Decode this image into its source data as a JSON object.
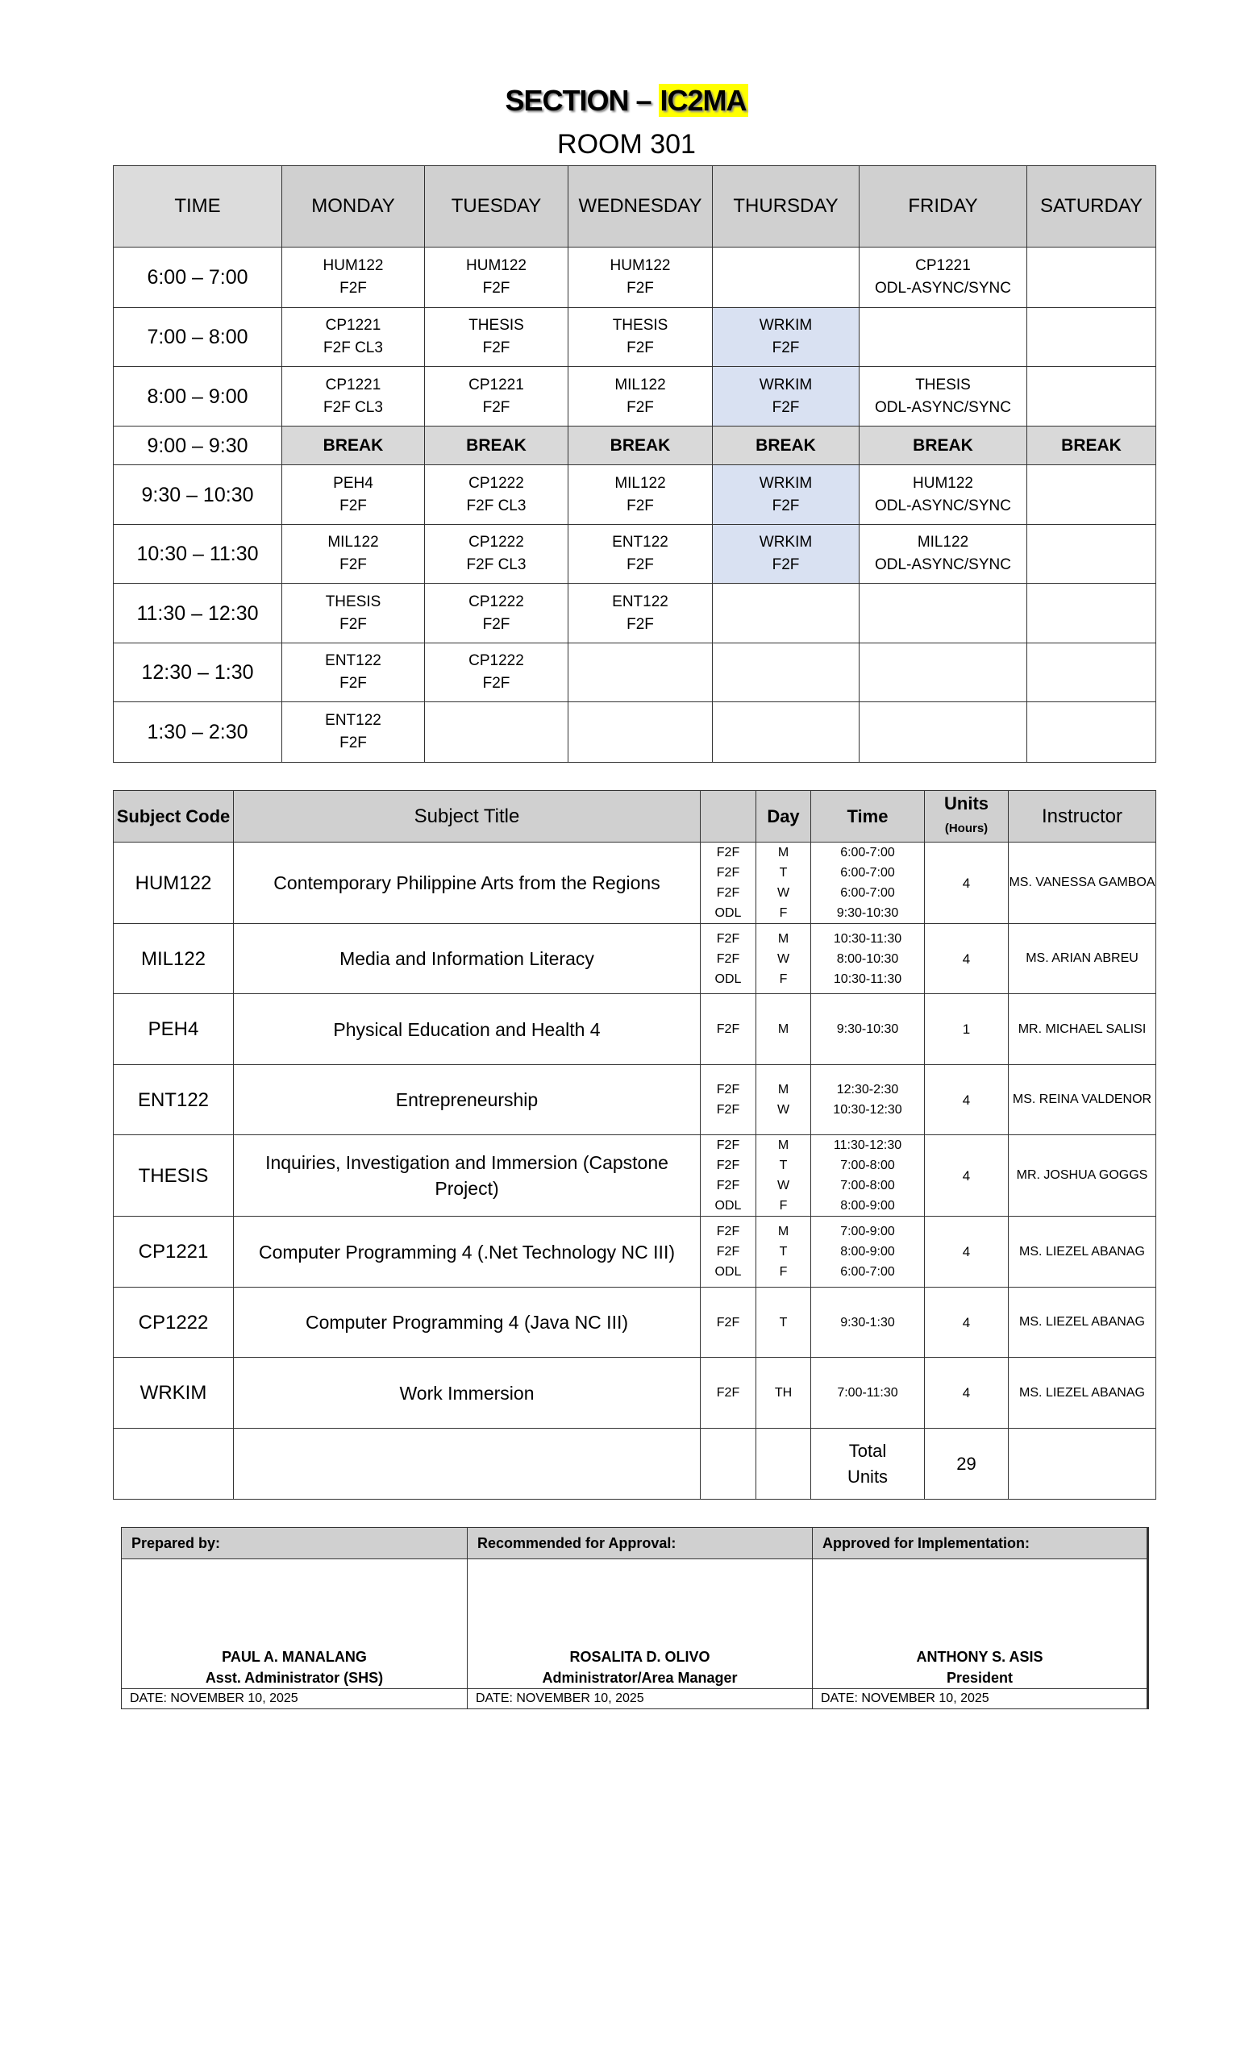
{
  "header": {
    "section_prefix": "SECTION – ",
    "section_code": "IC2MA",
    "room": "ROOM 301"
  },
  "colors": {
    "highlight": "#ffff00",
    "wrkim_cell": "#d9e1f2",
    "header_bg": "#d0d0d0",
    "break_bg": "#d9d9d9"
  },
  "schedule": {
    "columns": [
      "TIME",
      "MONDAY",
      "TUESDAY",
      "WEDNESDAY",
      "THURSDAY",
      "FRIDAY",
      "SATURDAY"
    ],
    "break_label": "BREAK",
    "rows": [
      {
        "time": "6:00 – 7:00",
        "cells": [
          [
            "HUM122",
            "F2F"
          ],
          [
            "HUM122",
            "F2F"
          ],
          [
            "HUM122",
            "F2F"
          ],
          null,
          [
            "CP1221",
            "ODL-ASYNC/SYNC"
          ],
          null
        ]
      },
      {
        "time": "7:00 – 8:00",
        "cells": [
          [
            "CP1221",
            "F2F CL3"
          ],
          [
            "THESIS",
            "F2F"
          ],
          [
            "THESIS",
            "F2F"
          ],
          [
            "WRKIM",
            "F2F"
          ],
          null,
          null
        ]
      },
      {
        "time": "8:00 – 9:00",
        "cells": [
          [
            "CP1221",
            "F2F CL3"
          ],
          [
            "CP1221",
            "F2F"
          ],
          [
            "MIL122",
            "F2F"
          ],
          [
            "WRKIM",
            "F2F"
          ],
          [
            "THESIS",
            "ODL-ASYNC/SYNC"
          ],
          null
        ]
      },
      {
        "time": "9:00 – 9:30",
        "is_break": true
      },
      {
        "time": "9:30 – 10:30",
        "cells": [
          [
            "PEH4",
            "F2F"
          ],
          [
            "CP1222",
            "F2F CL3"
          ],
          [
            "MIL122",
            "F2F"
          ],
          [
            "WRKIM",
            "F2F"
          ],
          [
            "HUM122",
            "ODL-ASYNC/SYNC"
          ],
          null
        ]
      },
      {
        "time": "10:30 – 11:30",
        "cells": [
          [
            "MIL122",
            "F2F"
          ],
          [
            "CP1222",
            "F2F CL3"
          ],
          [
            "ENT122",
            "F2F"
          ],
          [
            "WRKIM",
            "F2F"
          ],
          [
            "MIL122",
            "ODL-ASYNC/SYNC"
          ],
          null
        ]
      },
      {
        "time": "11:30 – 12:30",
        "cells": [
          [
            "THESIS",
            "F2F"
          ],
          [
            "CP1222",
            "F2F"
          ],
          [
            "ENT122",
            "F2F"
          ],
          null,
          null,
          null
        ]
      },
      {
        "time": "12:30 – 1:30",
        "cells": [
          [
            "ENT122",
            "F2F"
          ],
          [
            "CP1222",
            "F2F"
          ],
          null,
          null,
          null,
          null
        ]
      },
      {
        "time": "1:30 – 2:30",
        "cells": [
          [
            "ENT122",
            "F2F"
          ],
          null,
          null,
          null,
          null,
          null
        ]
      }
    ]
  },
  "subjects": {
    "headers": {
      "code": "Subject Code",
      "title": "Subject Title",
      "mode": "",
      "day": "Day",
      "time": "Time",
      "units": "Units",
      "units_sub": "(Hours)",
      "instructor": "Instructor"
    },
    "rows": [
      {
        "code": "HUM122",
        "title": "Contemporary Philippine Arts from the Regions",
        "mode": [
          "F2F",
          "F2F",
          "F2F",
          "ODL"
        ],
        "day": [
          "M",
          "T",
          "W",
          "F"
        ],
        "time": [
          "6:00-7:00",
          "6:00-7:00",
          "6:00-7:00",
          "9:30-10:30"
        ],
        "units": "4",
        "instructor": "MS. VANESSA GAMBOA"
      },
      {
        "code": "MIL122",
        "title": "Media and Information Literacy",
        "mode": [
          "F2F",
          "F2F",
          "ODL"
        ],
        "day": [
          "M",
          "W",
          "F"
        ],
        "time": [
          "10:30-11:30",
          "8:00-10:30",
          "10:30-11:30"
        ],
        "units": "4",
        "instructor": "MS. ARIAN ABREU"
      },
      {
        "code": "PEH4",
        "title": "Physical Education and Health 4",
        "mode": [
          "F2F"
        ],
        "day": [
          "M"
        ],
        "time": [
          "9:30-10:30"
        ],
        "units": "1",
        "instructor": "MR. MICHAEL SALISI"
      },
      {
        "code": "ENT122",
        "title": "Entrepreneurship",
        "mode": [
          "F2F",
          "F2F"
        ],
        "day": [
          "M",
          "W"
        ],
        "time": [
          "12:30-2:30",
          "10:30-12:30"
        ],
        "units": "4",
        "instructor": "MS. REINA VALDENOR"
      },
      {
        "code": "THESIS",
        "title": "Inquiries, Investigation and Immersion (Capstone Project)",
        "mode": [
          "F2F",
          "F2F",
          "F2F",
          "ODL"
        ],
        "day": [
          "M",
          "T",
          "W",
          "F"
        ],
        "time": [
          "11:30-12:30",
          "7:00-8:00",
          "7:00-8:00",
          "8:00-9:00"
        ],
        "units": "4",
        "instructor": "MR. JOSHUA GOGGS"
      },
      {
        "code": "CP1221",
        "title": "Computer Programming 4 (.Net Technology NC III)",
        "mode": [
          "F2F",
          "F2F",
          "ODL"
        ],
        "day": [
          "M",
          "T",
          "F"
        ],
        "time": [
          "7:00-9:00",
          "8:00-9:00",
          "6:00-7:00"
        ],
        "units": "4",
        "instructor": "MS. LIEZEL ABANAG"
      },
      {
        "code": "CP1222",
        "title": "Computer Programming 4 (Java NC III)",
        "mode": [
          "F2F"
        ],
        "day": [
          "T"
        ],
        "time": [
          "9:30-1:30"
        ],
        "units": "4",
        "instructor": "MS. LIEZEL ABANAG"
      },
      {
        "code": "WRKIM",
        "title": "Work Immersion",
        "mode": [
          "F2F"
        ],
        "day": [
          "TH"
        ],
        "time": [
          "7:00-11:30"
        ],
        "units": "4",
        "instructor": "MS. LIEZEL ABANAG"
      }
    ],
    "total_label": "Total Units",
    "total_units": "29"
  },
  "signatures": [
    {
      "label": "Prepared by:",
      "name": "PAUL A. MANALANG",
      "role": "Asst. Administrator (SHS)",
      "date": "DATE: NOVEMBER 10, 2025"
    },
    {
      "label": "Recommended for Approval:",
      "name": "ROSALITA D. OLIVO",
      "role": "Administrator/Area Manager",
      "date": "DATE: NOVEMBER 10, 2025"
    },
    {
      "label": "Approved for Implementation:",
      "name": "ANTHONY S. ASIS",
      "role": "President",
      "date": "DATE: NOVEMBER 10, 2025"
    }
  ]
}
